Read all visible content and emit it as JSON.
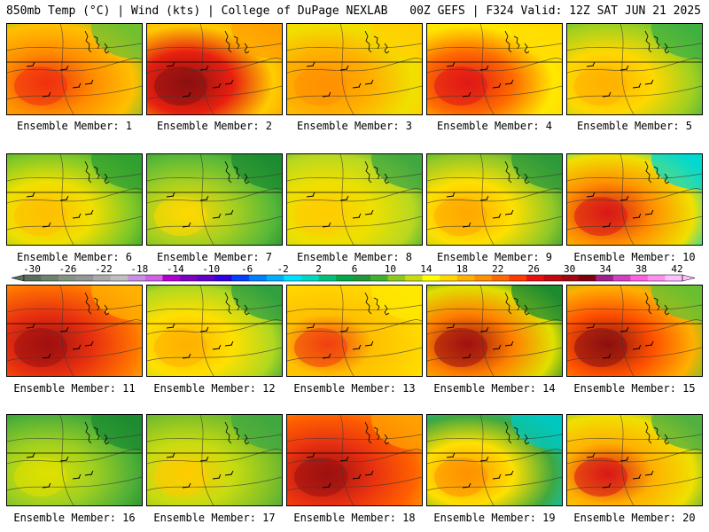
{
  "header": {
    "left": "850mb Temp (°C) | Wind (kts) | College of DuPage NEXLAB",
    "right": "00Z GEFS | F324 Valid: 12Z SAT JUN 21 2025"
  },
  "caption_prefix": "Ensemble Member: ",
  "members": [
    {
      "id": 1,
      "hot": "#f03010",
      "warm": "#ff8c00",
      "cool": "#70c030",
      "edge": "#ffc000"
    },
    {
      "id": 2,
      "hot": "#8c1010",
      "warm": "#e82010",
      "cool": "#ffa000",
      "edge": "#ffcc00"
    },
    {
      "id": 3,
      "hot": "#ff9000",
      "warm": "#ffb000",
      "cool": "#ffd000",
      "edge": "#f0e000"
    },
    {
      "id": 4,
      "hot": "#e01818",
      "warm": "#ff6a00",
      "cool": "#ffdc00",
      "edge": "#ffe800"
    },
    {
      "id": 5,
      "hot": "#ffb000",
      "warm": "#ffd800",
      "cool": "#40b040",
      "edge": "#a0d020"
    },
    {
      "id": 6,
      "hot": "#ffc000",
      "warm": "#f0e000",
      "cool": "#30a030",
      "edge": "#80c828"
    },
    {
      "id": 7,
      "hot": "#ffd800",
      "warm": "#a8d020",
      "cool": "#1e8c30",
      "edge": "#58b838"
    },
    {
      "id": 8,
      "hot": "#ffcc00",
      "warm": "#eee000",
      "cool": "#40a840",
      "edge": "#b8d820"
    },
    {
      "id": 9,
      "hot": "#ffa800",
      "warm": "#ffe000",
      "cool": "#2e9a3a",
      "edge": "#90c828"
    },
    {
      "id": 10,
      "hot": "#d81818",
      "warm": "#ff9000",
      "cool": "#00d8d0",
      "edge": "#f0e000"
    },
    {
      "id": 11,
      "hot": "#a01010",
      "warm": "#e83010",
      "cool": "#ffb000",
      "edge": "#ff7000"
    },
    {
      "id": 12,
      "hot": "#ffb000",
      "warm": "#ffe000",
      "cool": "#30a040",
      "edge": "#b0d820"
    },
    {
      "id": 13,
      "hot": "#f04010",
      "warm": "#ffc000",
      "cool": "#ffe800",
      "edge": "#ffd400"
    },
    {
      "id": 14,
      "hot": "#a01010",
      "warm": "#ff8000",
      "cool": "#1e8c30",
      "edge": "#e0e000"
    },
    {
      "id": 15,
      "hot": "#8c1010",
      "warm": "#ff5000",
      "cool": "#68c030",
      "edge": "#ffb000"
    },
    {
      "id": 16,
      "hot": "#e0e000",
      "warm": "#a0d020",
      "cool": "#1e8c30",
      "edge": "#50b038"
    },
    {
      "id": 17,
      "hot": "#ffcc00",
      "warm": "#c8dc10",
      "cool": "#40a840",
      "edge": "#80c028"
    },
    {
      "id": 18,
      "hot": "#9c1010",
      "warm": "#e83010",
      "cool": "#ffa000",
      "edge": "#ff6000"
    },
    {
      "id": 19,
      "hot": "#ff9000",
      "warm": "#ffe000",
      "cool": "#00c8c0",
      "edge": "#40a840"
    },
    {
      "id": 20,
      "hot": "#d81818",
      "warm": "#ffb000",
      "cool": "#50b040",
      "edge": "#f0e000"
    }
  ],
  "colorbar": {
    "ticks": [
      "-30",
      "-26",
      "-22",
      "-18",
      "-14",
      "-10",
      "-6",
      "-2",
      "2",
      "6",
      "10",
      "14",
      "18",
      "22",
      "26",
      "30",
      "34",
      "38",
      "42"
    ],
    "colors": [
      "#5a6e5a",
      "#6e826e",
      "#829682",
      "#969696",
      "#aaaaaa",
      "#c0c0c0",
      "#c890e0",
      "#d060e8",
      "#b000d0",
      "#8000c0",
      "#6000c8",
      "#3000e0",
      "#0040ff",
      "#0080ff",
      "#00b0ff",
      "#00e0ff",
      "#00d8c0",
      "#00c080",
      "#00a848",
      "#209838",
      "#40b030",
      "#90c820",
      "#c8dc10",
      "#ffff00",
      "#ffd800",
      "#ffb000",
      "#ff9000",
      "#ff6a00",
      "#ff3c00",
      "#e81010",
      "#c00810",
      "#a00810",
      "#800010",
      "#a0208c",
      "#d040c0",
      "#ff60e0",
      "#ff90f0",
      "#ffc0ff"
    ]
  }
}
